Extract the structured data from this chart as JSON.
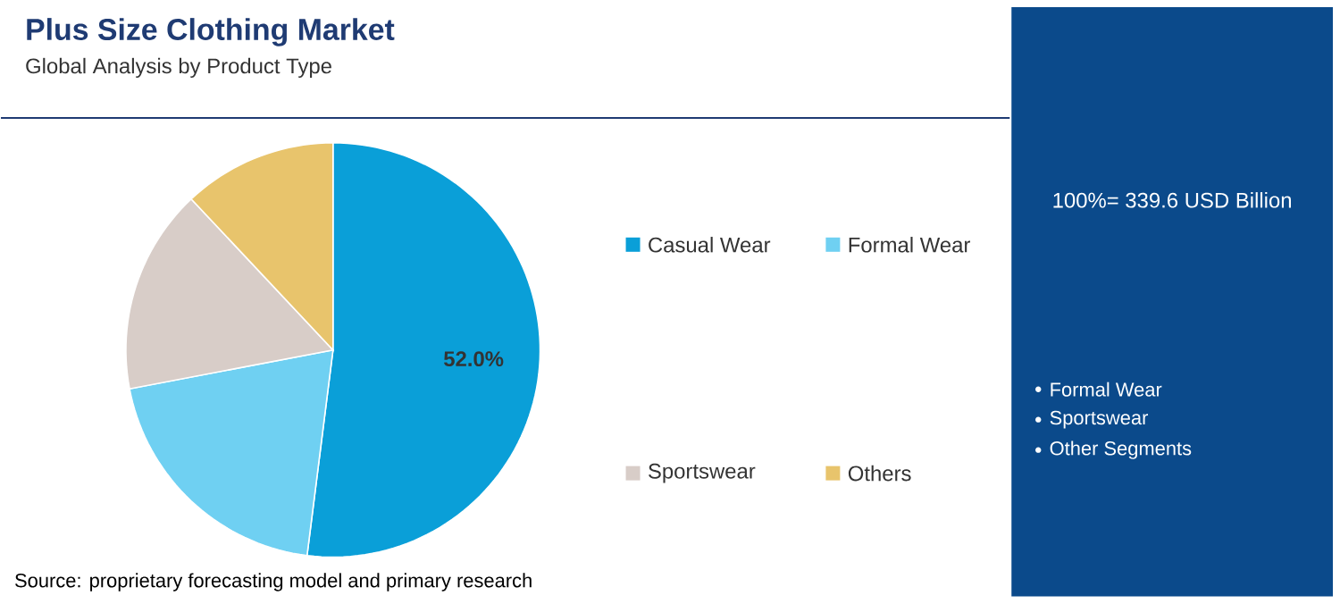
{
  "chart_data": {
    "type": "pie",
    "title": "Plus Size Clothing Market",
    "subtitle": "Global Analysis by Product Type",
    "categories": [
      "Casual Wear",
      "Formal Wear",
      "Sportswear",
      "Others"
    ],
    "values": [
      52.0,
      20,
      16,
      12
    ],
    "colors": [
      "#0a9fd8",
      "#6fd0f2",
      "#d8cdc8",
      "#e8c46c"
    ],
    "value_labels": [
      "52.0%",
      null,
      null,
      null
    ],
    "legend": "right",
    "annotations": [
      "100%= 339.6 USD Billion",
      "Formal Wear",
      "Sportswear",
      "Other Segments",
      "Source: proprietary forecasting model and primary research"
    ]
  }
}
